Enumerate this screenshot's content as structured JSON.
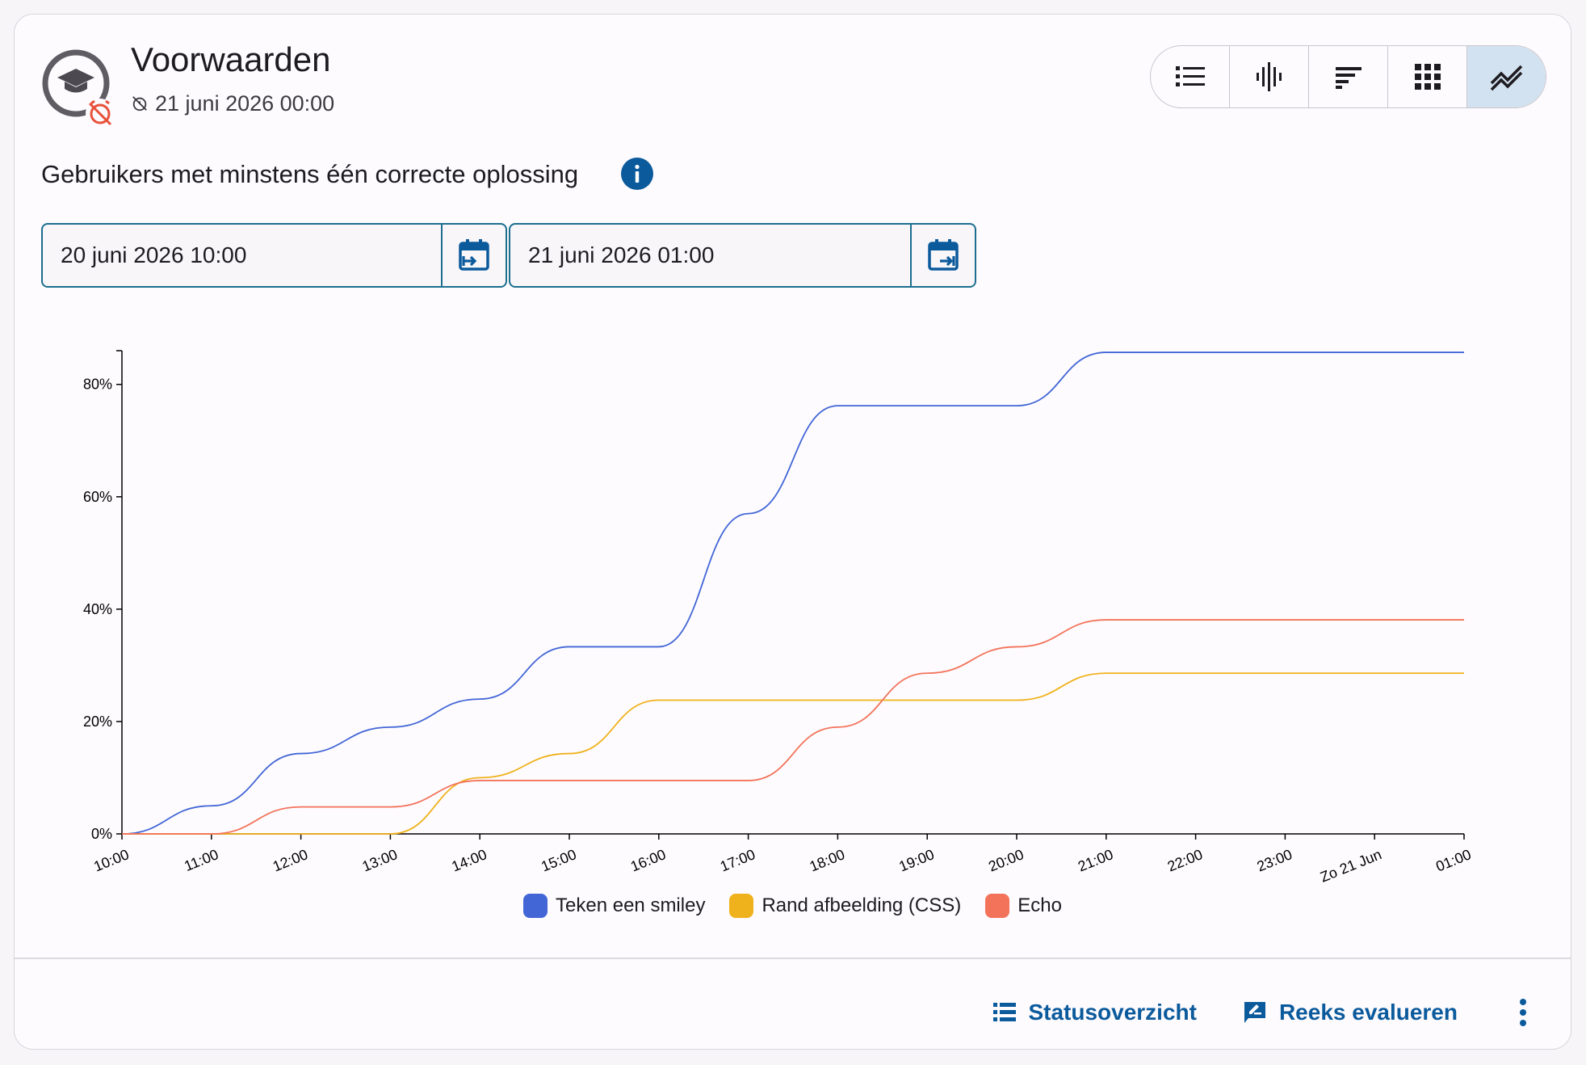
{
  "header": {
    "title": "Voorwaarden",
    "deadline": "21 juni 2026 00:00",
    "icons": [
      "graduation-cap-icon",
      "alarm-off-icon",
      "alarm-icon"
    ]
  },
  "view_toggle": {
    "buttons": [
      "list-icon",
      "audio-bars-icon",
      "sort-bars-icon",
      "grid-icon",
      "line-chart-icon"
    ],
    "active": "line-chart-icon"
  },
  "subtitle": "Gebruikers met minstens één correcte oplossing",
  "date_range": {
    "start": "20 juni 2026 10:00",
    "end": "21 juni 2026 01:00"
  },
  "chart_data": {
    "type": "line",
    "title": "",
    "xlabel": "",
    "ylabel": "",
    "x": [
      "10:00",
      "11:00",
      "12:00",
      "13:00",
      "14:00",
      "15:00",
      "16:00",
      "17:00",
      "18:00",
      "19:00",
      "20:00",
      "21:00",
      "22:00",
      "23:00",
      "Zo 21 Jun",
      "01:00"
    ],
    "yticks": [
      "0%",
      "20%",
      "40%",
      "60%",
      "80%"
    ],
    "ylim": [
      0,
      86
    ],
    "grid": false,
    "legend": "bottom",
    "series": [
      {
        "name": "Teken een smiley",
        "color": "#4266d6",
        "values": [
          0,
          5,
          14.3,
          19,
          24,
          33.3,
          33.3,
          57,
          76.2,
          76.2,
          76.2,
          85.7,
          85.7,
          85.7,
          85.7,
          85.7
        ]
      },
      {
        "name": "Rand afbeelding (CSS)",
        "color": "#f0b21c",
        "values": [
          0,
          0,
          0,
          0,
          10,
          14.3,
          23.8,
          23.8,
          23.8,
          23.8,
          23.8,
          28.6,
          28.6,
          28.6,
          28.6,
          28.6
        ]
      },
      {
        "name": "Echo",
        "color": "#f3735a",
        "values": [
          0,
          0,
          4.8,
          4.8,
          9.5,
          9.5,
          9.5,
          9.5,
          19,
          28.6,
          33.3,
          38.1,
          38.1,
          38.1,
          38.1,
          38.1
        ]
      }
    ]
  },
  "footer": {
    "status_label": "Statusoverzicht",
    "evaluate_label": "Reeks evalueren"
  }
}
